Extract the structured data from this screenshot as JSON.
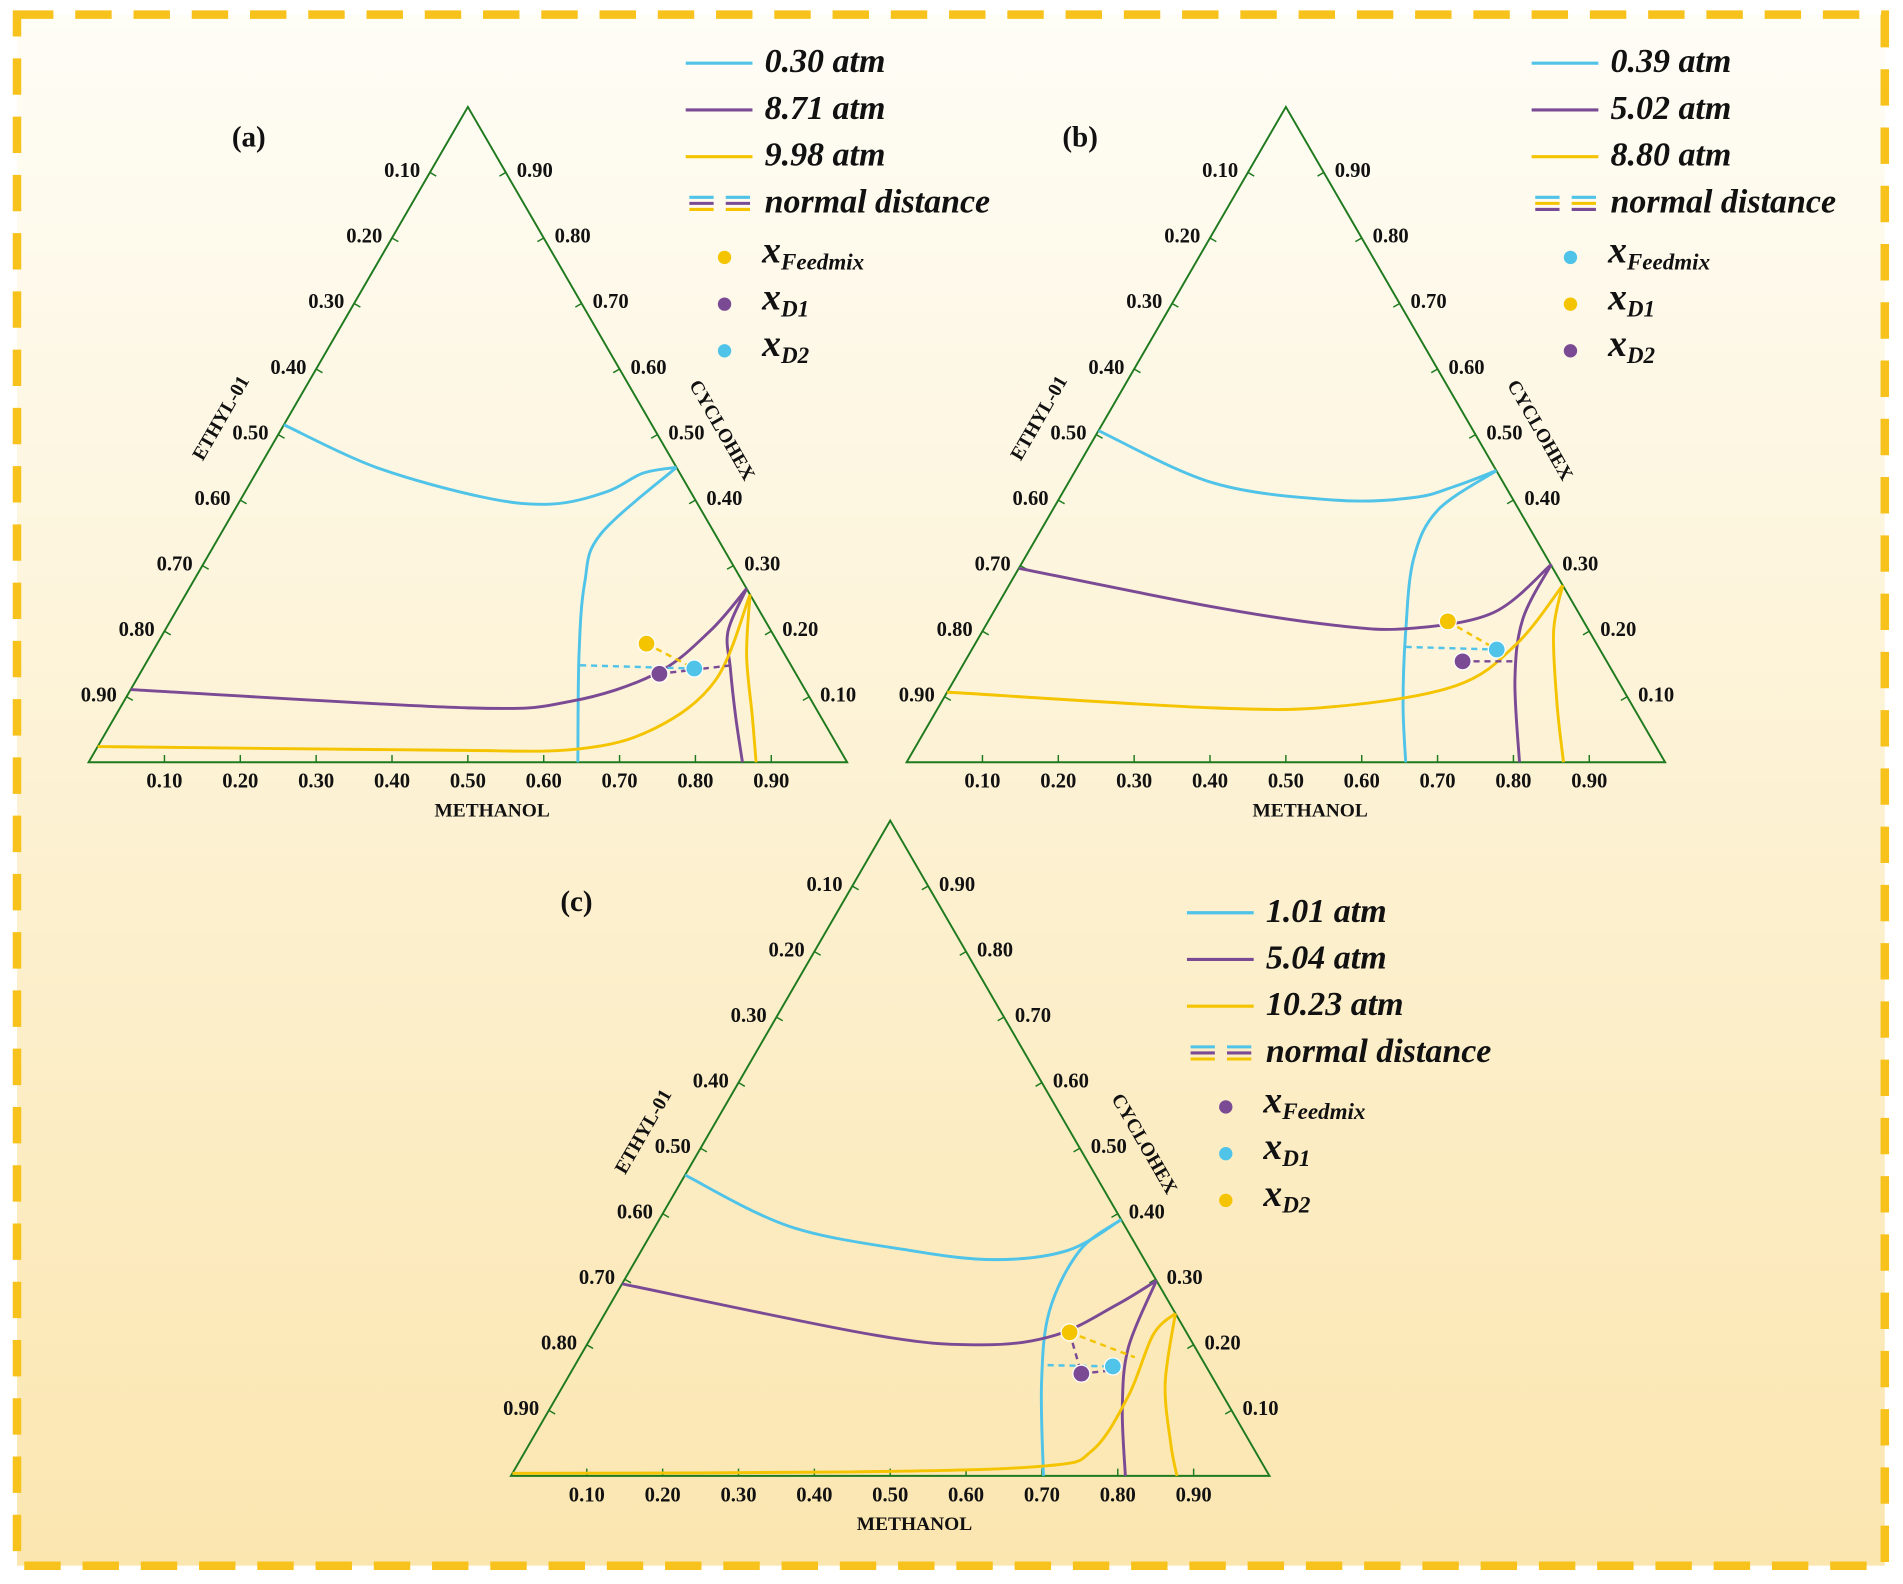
{
  "chart_data": [
    {
      "type": "ternary",
      "panel_label": "(a)",
      "bottom_label": "METHANOL",
      "left_label": "ETHYL-01",
      "right_label": "CYCLOHEX",
      "ticks": [
        {
          "value": 0.1,
          "label": "0.10"
        },
        {
          "value": 0.2,
          "label": "0.20"
        },
        {
          "value": 0.3,
          "label": "0.30"
        },
        {
          "value": 0.4,
          "label": "0.40"
        },
        {
          "value": 0.5,
          "label": "0.50"
        },
        {
          "value": 0.6,
          "label": "0.60"
        },
        {
          "value": 0.7,
          "label": "0.70"
        },
        {
          "value": 0.8,
          "label": "0.80"
        },
        {
          "value": 0.9,
          "label": "0.90"
        }
      ],
      "series": [
        {
          "name": "0.30 atm",
          "color": "#4fc3e8",
          "x": [
            0,
            0.154,
            0.32,
            0.414,
            0.477,
            0.51,
            0.55,
            null,
            0.55,
            0.501,
            0.517,
            0.565,
            0.645
          ],
          "values": [
            0.515,
            0.45,
            0.404,
            0.394,
            0.413,
            0.441,
            0.45,
            null,
            0.45,
            0.348,
            0.274,
            0.163,
            0
          ]
        },
        {
          "name": "8.71 atm",
          "color": "#7b4a94",
          "x": [
            0,
            0.458,
            0.589,
            0.68,
            0.719,
            0.735,
            null,
            0.735,
            0.743,
            0.774,
            0.818,
            0.862
          ],
          "values": [
            0.111,
            0.083,
            0.093,
            0.135,
            0.2,
            0.265,
            null,
            0.265,
            0.2,
            0.144,
            0.07,
            0
          ]
        },
        {
          "name": "9.98 atm",
          "color": "#f5c400",
          "x": [
            0.744,
            0.764,
            0.721,
            0.633,
            0.45,
            0,
            null,
            0.744,
            0.786,
            0.84,
            0.88
          ],
          "values": [
            0.256,
            0.126,
            0.052,
            0.02,
            0.0185,
            0.024,
            null,
            0.256,
            0.163,
            0.07,
            0
          ]
        },
        {
          "name": "normal distance",
          "dashed": true,
          "colors": [
            "#4fc3e8",
            "#7b4a94",
            "#f5c400"
          ],
          "x": [
            0.574,
            0.727,
            null,
            0.685,
            0.774,
            null,
            0.645,
            0.727
          ],
          "values": [
            0.148,
            0.143,
            null,
            0.135,
            0.148,
            null,
            0.181,
            0.143
          ]
        }
      ],
      "points": [
        {
          "name": "x",
          "subscript": "Feedmix",
          "color": "#f5c400",
          "x": 0.645,
          "value": 0.181
        },
        {
          "name": "x",
          "subscript": "D1",
          "color": "#7b4a94",
          "x": 0.685,
          "value": 0.135
        },
        {
          "name": "x",
          "subscript": "D2",
          "color": "#4fc3e8",
          "x": 0.727,
          "value": 0.143
        }
      ]
    },
    {
      "type": "ternary",
      "panel_label": "(b)",
      "bottom_label": "METHANOL",
      "left_label": "ETHYL-01",
      "right_label": "CYCLOHEX",
      "ticks": [
        {
          "value": 0.1,
          "label": "0.10"
        },
        {
          "value": 0.2,
          "label": "0.20"
        },
        {
          "value": 0.3,
          "label": "0.30"
        },
        {
          "value": 0.4,
          "label": "0.40"
        },
        {
          "value": 0.5,
          "label": "0.50"
        },
        {
          "value": 0.6,
          "label": "0.60"
        },
        {
          "value": 0.7,
          "label": "0.70"
        },
        {
          "value": 0.8,
          "label": "0.80"
        },
        {
          "value": 0.9,
          "label": "0.90"
        }
      ],
      "series": [
        {
          "name": "0.39 atm",
          "color": "#4fc3e8",
          "x": [
            0,
            0.192,
            0.365,
            0.467,
            0.514,
            0.555,
            null,
            0.555,
            0.508,
            0.513,
            0.558,
            0.61,
            0.658
          ],
          "values": [
            0.506,
            0.426,
            0.4,
            0.404,
            0.422,
            0.445,
            null,
            0.445,
            0.385,
            0.311,
            0.2,
            0.089,
            0
          ]
        },
        {
          "name": "5.02 atm",
          "color": "#7b4a94",
          "x": [
            0,
            0.286,
            0.46,
            0.559,
            0.659,
            0.699,
            null,
            0.699,
            0.703,
            0.739,
            0.808
          ],
          "values": [
            0.296,
            0.237,
            0.209,
            0.204,
            0.228,
            0.302,
            null,
            0.302,
            0.219,
            0.126,
            0
          ]
        },
        {
          "name": "8.80 atm",
          "color": "#f5c400",
          "x": [
            0,
            0.363,
            0.522,
            0.666,
            0.714,
            0.73,
            null,
            0.73,
            0.753,
            0.813,
            0.866
          ],
          "values": [
            0.107,
            0.083,
            0.085,
            0.117,
            0.181,
            0.27,
            null,
            0.27,
            0.2,
            0.089,
            0
          ]
        },
        {
          "name": "normal distance",
          "dashed": true,
          "colors": [
            "#4fc3e8",
            "#f5c400",
            "#7b4a94"
          ],
          "x": [
            0.57,
            0.692,
            null,
            0.606,
            0.692,
            null,
            0.656,
            0.728
          ],
          "values": [
            0.176,
            0.172,
            null,
            0.215,
            0.172,
            null,
            0.154,
            0.154
          ]
        }
      ],
      "points": [
        {
          "name": "x",
          "subscript": "Feedmix",
          "color": "#4fc3e8",
          "x": 0.692,
          "value": 0.172
        },
        {
          "name": "x",
          "subscript": "D1",
          "color": "#f5c400",
          "x": 0.606,
          "value": 0.215
        },
        {
          "name": "x",
          "subscript": "D2",
          "color": "#7b4a94",
          "x": 0.656,
          "value": 0.154
        }
      ]
    },
    {
      "type": "ternary",
      "panel_label": "(c)",
      "bottom_label": "METHANOL",
      "left_label": "ETHYL-01",
      "right_label": "CYCLOHEX",
      "ticks": [
        {
          "value": 0.1,
          "label": "0.10"
        },
        {
          "value": 0.2,
          "label": "0.20"
        },
        {
          "value": 0.3,
          "label": "0.30"
        },
        {
          "value": 0.4,
          "label": "0.40"
        },
        {
          "value": 0.5,
          "label": "0.50"
        },
        {
          "value": 0.6,
          "label": "0.60"
        },
        {
          "value": 0.7,
          "label": "0.70"
        },
        {
          "value": 0.8,
          "label": "0.80"
        },
        {
          "value": 0.9,
          "label": "0.90"
        }
      ],
      "series": [
        {
          "name": "1.01 atm",
          "color": "#4fc3e8",
          "x": [
            0,
            0.176,
            0.354,
            0.473,
            0.562,
            0.609,
            null,
            0.609,
            0.578,
            0.584,
            0.629,
            0.702
          ],
          "values": [
            0.459,
            0.381,
            0.344,
            0.33,
            0.344,
            0.391,
            null,
            0.391,
            0.344,
            0.252,
            0.141,
            0
          ]
        },
        {
          "name": "5.04 atm",
          "color": "#7b4a94",
          "x": [
            0,
            0.371,
            0.522,
            0.611,
            0.668,
            0.702,
            null,
            0.702,
            0.716,
            0.754,
            0.81
          ],
          "values": [
            0.293,
            0.215,
            0.2,
            0.215,
            0.261,
            0.298,
            null,
            0.298,
            0.196,
            0.104,
            0
          ]
        },
        {
          "name": "10.23 atm",
          "color": "#f5c400",
          "x": [
            0,
            0.444,
            0.695,
            0.747,
            0.753,
            0.739,
            0.752,
            null,
            0.752,
            0.792,
            0.846,
            0.878
          ],
          "values": [
            0.004,
            0.006,
            0.015,
            0.039,
            0.122,
            0.215,
            0.248,
            null,
            0.248,
            0.141,
            0.048,
            0
          ]
        },
        {
          "name": "normal distance",
          "dashed": true,
          "colors": [
            "#4fc3e8",
            "#7b4a94",
            "#7b4a94",
            "#f5c400"
          ],
          "x": [
            0.623,
            0.71,
            null,
            0.627,
            0.674,
            null,
            0.674,
            0.725,
            null,
            0.627,
            0.732
          ],
          "values": [
            0.169,
            0.167,
            null,
            0.219,
            0.156,
            null,
            0.156,
            0.163,
            null,
            0.219,
            0.181
          ]
        }
      ],
      "points": [
        {
          "name": "x",
          "subscript": "Feedmix",
          "color": "#7b4a94",
          "x": 0.674,
          "value": 0.156
        },
        {
          "name": "x",
          "subscript": "D1",
          "color": "#4fc3e8",
          "x": 0.71,
          "value": 0.167
        },
        {
          "name": "x",
          "subscript": "D2",
          "color": "#f5c400",
          "x": 0.627,
          "value": 0.219
        }
      ]
    }
  ]
}
